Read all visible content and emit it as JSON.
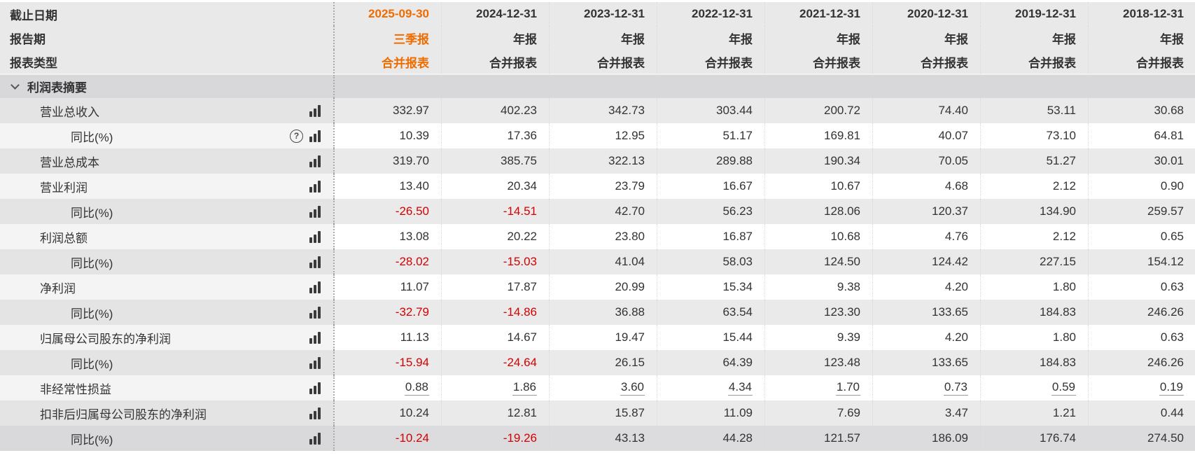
{
  "colors": {
    "accent_orange": "#ef6c00",
    "negative_red": "#d60000",
    "header_bg": "#e9e9e9",
    "section_bg": "#d8d8da",
    "stripe_gray": "#eaeaeb",
    "highlight_row_bg": "#dcdcde"
  },
  "header": {
    "row_labels": [
      "截止日期",
      "报告期",
      "报表类型"
    ],
    "columns": [
      {
        "date": "2025-09-30",
        "period": "三季报",
        "type": "合并报表",
        "highlight": true
      },
      {
        "date": "2024-12-31",
        "period": "年报",
        "type": "合并报表",
        "highlight": false
      },
      {
        "date": "2023-12-31",
        "period": "年报",
        "type": "合并报表",
        "highlight": false
      },
      {
        "date": "2022-12-31",
        "period": "年报",
        "type": "合并报表",
        "highlight": false
      },
      {
        "date": "2021-12-31",
        "period": "年报",
        "type": "合并报表",
        "highlight": false
      },
      {
        "date": "2020-12-31",
        "period": "年报",
        "type": "合并报表",
        "highlight": false
      },
      {
        "date": "2019-12-31",
        "period": "年报",
        "type": "合并报表",
        "highlight": false
      },
      {
        "date": "2018-12-31",
        "period": "年报",
        "type": "合并报表",
        "highlight": false
      }
    ]
  },
  "section": {
    "title": "利润表摘要"
  },
  "rows": [
    {
      "label": "营业总收入",
      "sub": false,
      "help": false,
      "underline": false,
      "highlighted": false,
      "values": [
        "332.97",
        "402.23",
        "342.73",
        "303.44",
        "200.72",
        "74.40",
        "53.11",
        "30.68"
      ]
    },
    {
      "label": "同比(%)",
      "sub": true,
      "help": true,
      "underline": false,
      "highlighted": false,
      "values": [
        "10.39",
        "17.36",
        "12.95",
        "51.17",
        "169.81",
        "40.07",
        "73.10",
        "64.81"
      ]
    },
    {
      "label": "营业总成本",
      "sub": false,
      "help": false,
      "underline": false,
      "highlighted": false,
      "values": [
        "319.70",
        "385.75",
        "322.13",
        "289.88",
        "190.34",
        "70.05",
        "51.27",
        "30.01"
      ]
    },
    {
      "label": "营业利润",
      "sub": false,
      "help": false,
      "underline": false,
      "highlighted": false,
      "values": [
        "13.40",
        "20.34",
        "23.79",
        "16.67",
        "10.67",
        "4.68",
        "2.12",
        "0.90"
      ]
    },
    {
      "label": "同比(%)",
      "sub": true,
      "help": false,
      "underline": false,
      "highlighted": false,
      "values": [
        "-26.50",
        "-14.51",
        "42.70",
        "56.23",
        "128.06",
        "120.37",
        "134.90",
        "259.57"
      ]
    },
    {
      "label": "利润总额",
      "sub": false,
      "help": false,
      "underline": false,
      "highlighted": false,
      "values": [
        "13.08",
        "20.22",
        "23.80",
        "16.87",
        "10.68",
        "4.76",
        "2.12",
        "0.65"
      ]
    },
    {
      "label": "同比(%)",
      "sub": true,
      "help": false,
      "underline": false,
      "highlighted": false,
      "values": [
        "-28.02",
        "-15.03",
        "41.04",
        "58.03",
        "124.50",
        "124.42",
        "227.15",
        "154.12"
      ]
    },
    {
      "label": "净利润",
      "sub": false,
      "help": false,
      "underline": false,
      "highlighted": false,
      "values": [
        "11.07",
        "17.87",
        "20.99",
        "15.34",
        "9.38",
        "4.20",
        "1.80",
        "0.63"
      ]
    },
    {
      "label": "同比(%)",
      "sub": true,
      "help": false,
      "underline": false,
      "highlighted": false,
      "values": [
        "-32.79",
        "-14.86",
        "36.88",
        "63.54",
        "123.30",
        "133.65",
        "184.83",
        "246.26"
      ]
    },
    {
      "label": "归属母公司股东的净利润",
      "sub": false,
      "help": false,
      "underline": false,
      "highlighted": false,
      "values": [
        "11.13",
        "14.67",
        "19.47",
        "15.44",
        "9.39",
        "4.20",
        "1.80",
        "0.63"
      ]
    },
    {
      "label": "同比(%)",
      "sub": true,
      "help": false,
      "underline": false,
      "highlighted": false,
      "values": [
        "-15.94",
        "-24.64",
        "26.15",
        "64.39",
        "123.48",
        "133.65",
        "184.83",
        "246.26"
      ]
    },
    {
      "label": "非经常性损益",
      "sub": false,
      "help": false,
      "underline": true,
      "highlighted": false,
      "values": [
        "0.88",
        "1.86",
        "3.60",
        "4.34",
        "1.70",
        "0.73",
        "0.59",
        "0.19"
      ]
    },
    {
      "label": "扣非后归属母公司股东的净利润",
      "sub": false,
      "help": false,
      "underline": false,
      "highlighted": false,
      "values": [
        "10.24",
        "12.81",
        "15.87",
        "11.09",
        "7.69",
        "3.47",
        "1.21",
        "0.44"
      ]
    },
    {
      "label": "同比(%)",
      "sub": true,
      "help": false,
      "underline": false,
      "highlighted": true,
      "values": [
        "-10.24",
        "-19.26",
        "43.13",
        "44.28",
        "121.57",
        "186.09",
        "176.74",
        "274.50"
      ]
    }
  ]
}
